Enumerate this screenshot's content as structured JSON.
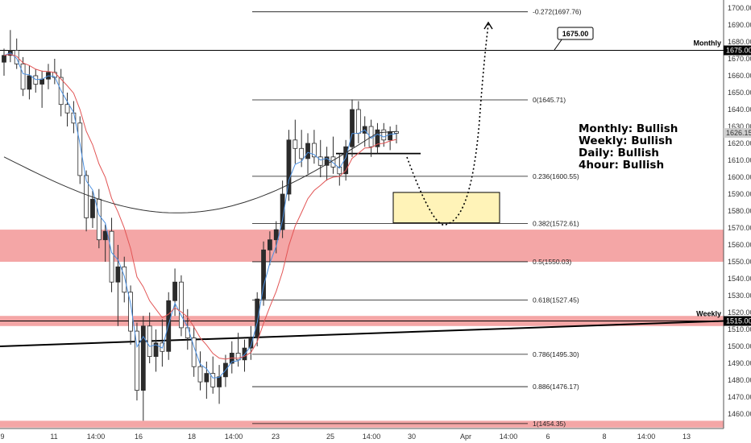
{
  "chart_data": {
    "type": "candlestick",
    "title": "",
    "xlabel": "",
    "ylabel": "",
    "ylim": [
      1452,
      1705
    ],
    "y_ticks": [
      1460,
      1470,
      1480,
      1490,
      1500,
      1510,
      1520,
      1530,
      1540,
      1550,
      1560,
      1570,
      1580,
      1590,
      1600,
      1610,
      1620,
      1630,
      1640,
      1650,
      1660,
      1670,
      1680,
      1690,
      1700
    ],
    "x_tick_labels": [
      "9",
      "11",
      "14:00",
      "16",
      "18",
      "14:00",
      "23",
      "25",
      "14:00",
      "30",
      "Apr",
      "14:00",
      "6",
      "8",
      "14:00",
      "13"
    ],
    "last_price": "1626.15",
    "candles": [
      {
        "o": 1668,
        "h": 1676,
        "l": 1660,
        "c": 1672
      },
      {
        "o": 1672,
        "h": 1687,
        "l": 1668,
        "c": 1675
      },
      {
        "o": 1675,
        "h": 1682,
        "l": 1664,
        "c": 1667
      },
      {
        "o": 1667,
        "h": 1671,
        "l": 1648,
        "c": 1652
      },
      {
        "o": 1652,
        "h": 1666,
        "l": 1646,
        "c": 1660
      },
      {
        "o": 1660,
        "h": 1664,
        "l": 1650,
        "c": 1655
      },
      {
        "o": 1655,
        "h": 1663,
        "l": 1641,
        "c": 1658
      },
      {
        "o": 1658,
        "h": 1667,
        "l": 1652,
        "c": 1662
      },
      {
        "o": 1662,
        "h": 1670,
        "l": 1655,
        "c": 1659
      },
      {
        "o": 1659,
        "h": 1664,
        "l": 1636,
        "c": 1643
      },
      {
        "o": 1643,
        "h": 1650,
        "l": 1630,
        "c": 1638
      },
      {
        "o": 1638,
        "h": 1645,
        "l": 1626,
        "c": 1632
      },
      {
        "o": 1632,
        "h": 1636,
        "l": 1596,
        "c": 1601
      },
      {
        "o": 1601,
        "h": 1604,
        "l": 1568,
        "c": 1576
      },
      {
        "o": 1576,
        "h": 1592,
        "l": 1570,
        "c": 1587
      },
      {
        "o": 1587,
        "h": 1593,
        "l": 1558,
        "c": 1563
      },
      {
        "o": 1563,
        "h": 1572,
        "l": 1550,
        "c": 1568
      },
      {
        "o": 1568,
        "h": 1576,
        "l": 1532,
        "c": 1538
      },
      {
        "o": 1538,
        "h": 1560,
        "l": 1512,
        "c": 1547
      },
      {
        "o": 1547,
        "h": 1553,
        "l": 1526,
        "c": 1532
      },
      {
        "o": 1532,
        "h": 1536,
        "l": 1501,
        "c": 1509
      },
      {
        "o": 1509,
        "h": 1514,
        "l": 1468,
        "c": 1474
      },
      {
        "o": 1474,
        "h": 1518,
        "l": 1456,
        "c": 1512
      },
      {
        "o": 1512,
        "h": 1520,
        "l": 1490,
        "c": 1494
      },
      {
        "o": 1494,
        "h": 1510,
        "l": 1485,
        "c": 1502
      },
      {
        "o": 1502,
        "h": 1516,
        "l": 1488,
        "c": 1497
      },
      {
        "o": 1497,
        "h": 1532,
        "l": 1492,
        "c": 1527
      },
      {
        "o": 1527,
        "h": 1546,
        "l": 1518,
        "c": 1538
      },
      {
        "o": 1538,
        "h": 1542,
        "l": 1506,
        "c": 1511
      },
      {
        "o": 1511,
        "h": 1522,
        "l": 1498,
        "c": 1505
      },
      {
        "o": 1505,
        "h": 1512,
        "l": 1482,
        "c": 1488
      },
      {
        "o": 1488,
        "h": 1497,
        "l": 1474,
        "c": 1479
      },
      {
        "o": 1479,
        "h": 1491,
        "l": 1469,
        "c": 1484
      },
      {
        "o": 1484,
        "h": 1494,
        "l": 1472,
        "c": 1476
      },
      {
        "o": 1476,
        "h": 1489,
        "l": 1466,
        "c": 1482
      },
      {
        "o": 1482,
        "h": 1495,
        "l": 1476,
        "c": 1490
      },
      {
        "o": 1490,
        "h": 1503,
        "l": 1484,
        "c": 1496
      },
      {
        "o": 1496,
        "h": 1508,
        "l": 1488,
        "c": 1492
      },
      {
        "o": 1492,
        "h": 1504,
        "l": 1485,
        "c": 1499
      },
      {
        "o": 1499,
        "h": 1512,
        "l": 1492,
        "c": 1505
      },
      {
        "o": 1505,
        "h": 1532,
        "l": 1500,
        "c": 1528
      },
      {
        "o": 1528,
        "h": 1562,
        "l": 1524,
        "c": 1557
      },
      {
        "o": 1557,
        "h": 1568,
        "l": 1548,
        "c": 1563
      },
      {
        "o": 1563,
        "h": 1574,
        "l": 1555,
        "c": 1569
      },
      {
        "o": 1569,
        "h": 1598,
        "l": 1564,
        "c": 1590
      },
      {
        "o": 1590,
        "h": 1628,
        "l": 1586,
        "c": 1622
      },
      {
        "o": 1622,
        "h": 1634,
        "l": 1608,
        "c": 1617
      },
      {
        "o": 1617,
        "h": 1628,
        "l": 1606,
        "c": 1611
      },
      {
        "o": 1611,
        "h": 1626,
        "l": 1602,
        "c": 1620
      },
      {
        "o": 1620,
        "h": 1628,
        "l": 1608,
        "c": 1612
      },
      {
        "o": 1612,
        "h": 1622,
        "l": 1600,
        "c": 1607
      },
      {
        "o": 1607,
        "h": 1618,
        "l": 1598,
        "c": 1612
      },
      {
        "o": 1612,
        "h": 1624,
        "l": 1602,
        "c": 1606
      },
      {
        "o": 1606,
        "h": 1614,
        "l": 1595,
        "c": 1602
      },
      {
        "o": 1602,
        "h": 1622,
        "l": 1598,
        "c": 1618
      },
      {
        "o": 1618,
        "h": 1646,
        "l": 1612,
        "c": 1640
      },
      {
        "o": 1640,
        "h": 1645,
        "l": 1620,
        "c": 1626
      },
      {
        "o": 1626,
        "h": 1636,
        "l": 1618,
        "c": 1630
      },
      {
        "o": 1630,
        "h": 1634,
        "l": 1612,
        "c": 1618
      },
      {
        "o": 1618,
        "h": 1632,
        "l": 1614,
        "c": 1628
      },
      {
        "o": 1628,
        "h": 1632,
        "l": 1618,
        "c": 1622
      },
      {
        "o": 1622,
        "h": 1630,
        "l": 1616,
        "c": 1627
      },
      {
        "o": 1627,
        "h": 1631,
        "l": 1620,
        "c": 1626
      }
    ],
    "lines": {
      "horizontal_levels": [
        {
          "label": "Monthly",
          "value": 1675
        },
        {
          "label": "Weekly",
          "value": 1515
        }
      ],
      "badges": [
        "1675.00"
      ],
      "fib_levels": [
        {
          "label": "-0.272(1697.76)",
          "value": 1697.76
        },
        {
          "label": "0(1645.71)",
          "value": 1645.71
        },
        {
          "label": "0.236(1600.55)",
          "value": 1600.55
        },
        {
          "label": "0.382(1572.61)",
          "value": 1572.61
        },
        {
          "label": "0.5(1550.03)",
          "value": 1550.03
        },
        {
          "label": "0.618(1527.45)",
          "value": 1527.45
        },
        {
          "label": "0.786(1495.30)",
          "value": 1495.3
        },
        {
          "label": "0.886(1476.17)",
          "value": 1476.17
        },
        {
          "label": "1(1454.35)",
          "value": 1454.35
        }
      ]
    },
    "zones": [
      {
        "name": "supply-demand",
        "from": 1550,
        "to": 1569,
        "color": "#f4a6a6"
      },
      {
        "name": "weekly-band",
        "from": 1512,
        "to": 1518,
        "color": "#f4a6a6"
      },
      {
        "name": "bottom-band",
        "from": 1452,
        "to": 1456,
        "color": "#f4a6a6"
      },
      {
        "name": "target-box",
        "from": 1573,
        "to": 1591,
        "color": "#fff3b8"
      }
    ],
    "annotations": [
      "Monthly: Bullish",
      "Weekly: Bullish",
      "Daily: Bullish",
      "4hour: Bullish"
    ]
  },
  "colors": {
    "up": "#2b2b2b",
    "down": "#ffffff",
    "ema_fast": "#4a90e2",
    "ema_slow": "#e25555",
    "ma_long": "#333333",
    "badge_bg": "#000000"
  }
}
